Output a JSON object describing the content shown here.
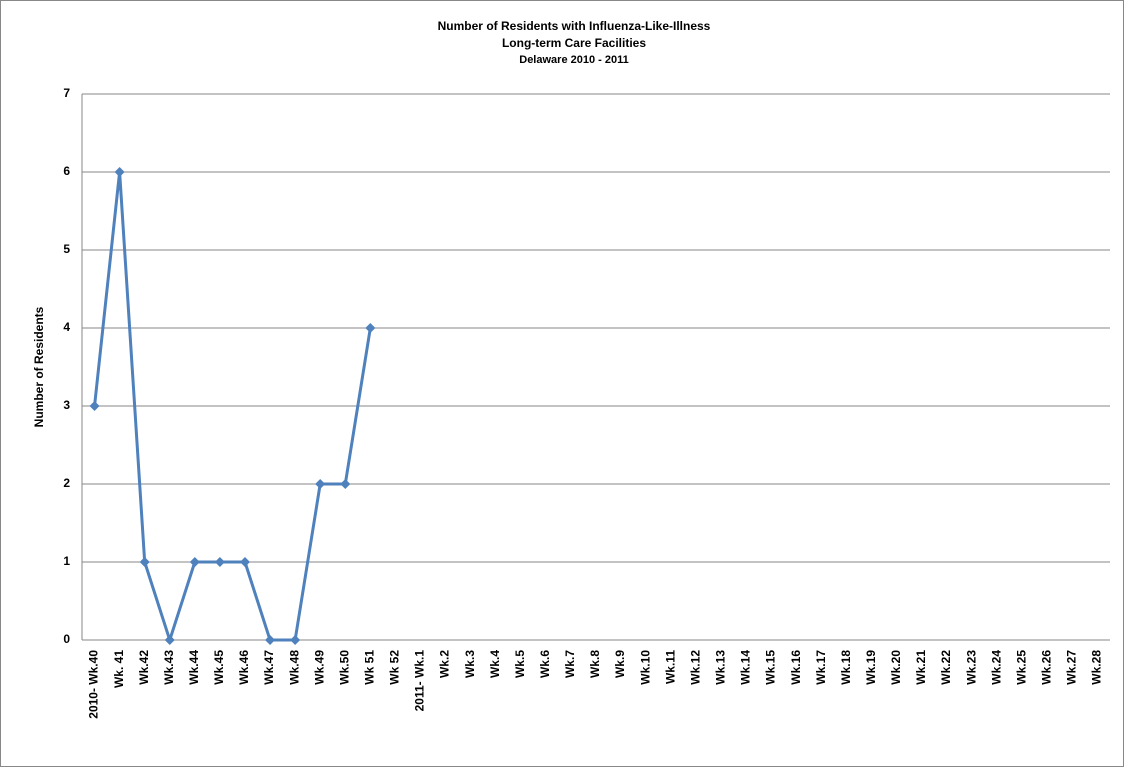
{
  "chart_data": {
    "type": "line",
    "title": "Number of Residents with Influenza-Like-Illness",
    "subtitles": [
      "Long-term Care Facilities",
      "Delaware 2010  - 2011"
    ],
    "y_label": "Number of Residents",
    "categories": [
      "2010- Wk.40",
      "Wk. 41",
      "Wk.42",
      "Wk.43",
      "Wk.44",
      "Wk.45",
      "Wk.46",
      "Wk.47",
      "Wk.48",
      "Wk.49",
      "Wk.50",
      "Wk 51",
      "Wk 52",
      "2011- Wk.1",
      "Wk.2",
      "Wk.3",
      "Wk.4",
      "Wk.5",
      "Wk.6",
      "Wk.7",
      "Wk.8",
      "Wk.9",
      "Wk.10",
      "Wk.11",
      "Wk.12",
      "Wk.13",
      "Wk.14",
      "Wk.15",
      "Wk.16",
      "Wk.17",
      "Wk.18",
      "Wk.19",
      "Wk.20",
      "Wk.21",
      "Wk.22",
      "Wk.23",
      "Wk.24",
      "Wk.25",
      "Wk.26",
      "Wk.27",
      "Wk.28"
    ],
    "values": [
      3,
      6,
      1,
      0,
      1,
      1,
      1,
      0,
      0,
      2,
      2,
      4,
      null,
      null,
      null,
      null,
      null,
      null,
      null,
      null,
      null,
      null,
      null,
      null,
      null,
      null,
      null,
      null,
      null,
      null,
      null,
      null,
      null,
      null,
      null,
      null,
      null,
      null,
      null,
      null,
      null
    ],
    "color": "#4f81bd",
    "ylim": [
      0,
      7
    ],
    "yticks": [
      0,
      1,
      2,
      3,
      4,
      5,
      6,
      7
    ],
    "grid": true
  }
}
